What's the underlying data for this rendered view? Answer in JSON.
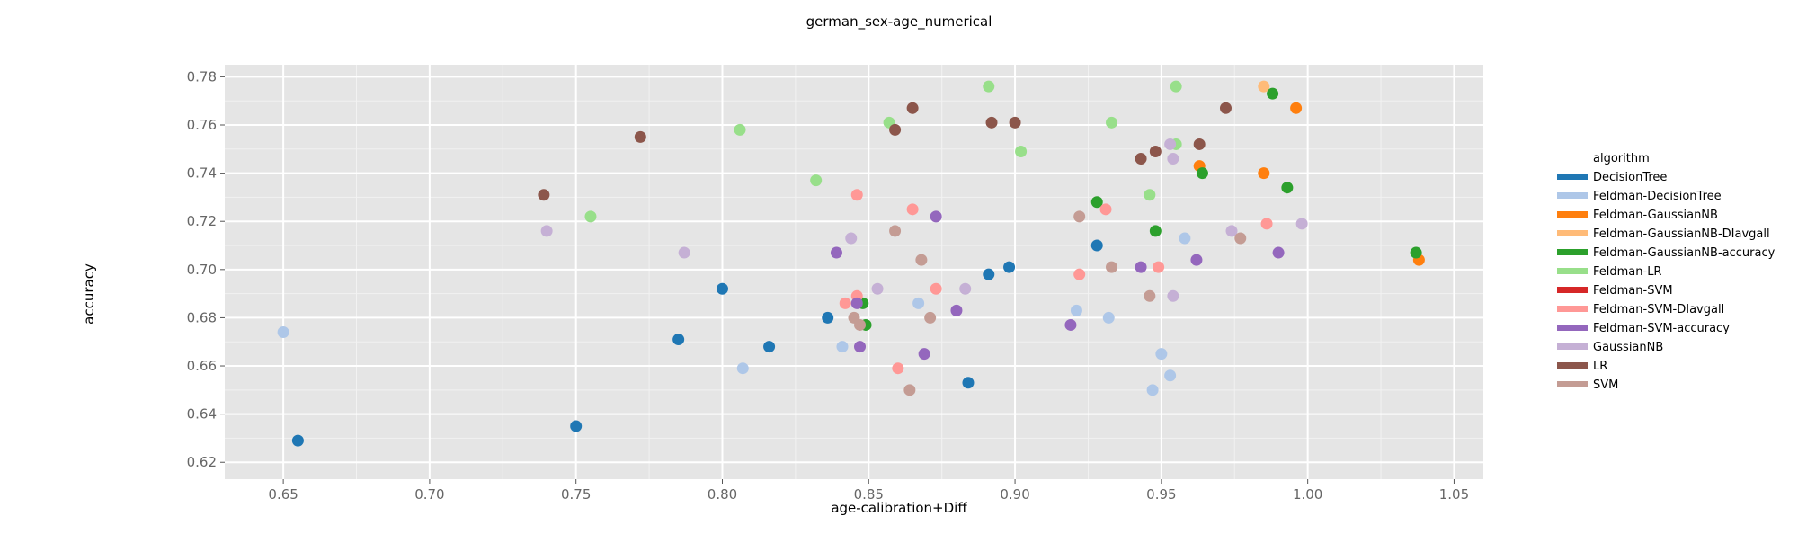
{
  "chart_data": {
    "type": "scatter",
    "title": "german_sex-age_numerical",
    "xlabel": "age-calibration+Diff",
    "ylabel": "accuracy",
    "xlim": [
      0.63,
      1.06
    ],
    "ylim": [
      0.613,
      0.785
    ],
    "x_ticks": [
      0.65,
      0.7,
      0.75,
      0.8,
      0.85,
      0.9,
      0.95,
      1.0,
      1.05
    ],
    "y_ticks": [
      0.62,
      0.64,
      0.66,
      0.68,
      0.7,
      0.72,
      0.74,
      0.76,
      0.78
    ],
    "grid": true,
    "legend": {
      "title": "algorithm",
      "position": "right"
    },
    "series": [
      {
        "name": "DecisionTree",
        "color": "#1f77b4",
        "points": [
          [
            0.655,
            0.629
          ],
          [
            0.75,
            0.635
          ],
          [
            0.785,
            0.671
          ],
          [
            0.8,
            0.692
          ],
          [
            0.816,
            0.668
          ],
          [
            0.836,
            0.68
          ],
          [
            0.884,
            0.653
          ],
          [
            0.891,
            0.698
          ],
          [
            0.898,
            0.701
          ],
          [
            0.928,
            0.71
          ]
        ]
      },
      {
        "name": "Feldman-DecisionTree",
        "color": "#aec7e8",
        "points": [
          [
            0.65,
            0.674
          ],
          [
            0.807,
            0.659
          ],
          [
            0.841,
            0.668
          ],
          [
            0.867,
            0.686
          ],
          [
            0.921,
            0.683
          ],
          [
            0.932,
            0.68
          ],
          [
            0.947,
            0.65
          ],
          [
            0.95,
            0.665
          ],
          [
            0.953,
            0.656
          ],
          [
            0.958,
            0.713
          ]
        ]
      },
      {
        "name": "Feldman-GaussianNB",
        "color": "#ff7f0e",
        "points": [
          [
            0.963,
            0.743
          ],
          [
            0.985,
            0.74
          ],
          [
            0.996,
            0.767
          ],
          [
            1.038,
            0.704
          ]
        ]
      },
      {
        "name": "Feldman-GaussianNB-DIavgall",
        "color": "#ffbb78",
        "points": [
          [
            0.985,
            0.776
          ]
        ]
      },
      {
        "name": "Feldman-GaussianNB-accuracy",
        "color": "#2ca02c",
        "points": [
          [
            0.848,
            0.686
          ],
          [
            0.849,
            0.677
          ],
          [
            0.928,
            0.728
          ],
          [
            0.948,
            0.716
          ],
          [
            0.964,
            0.74
          ],
          [
            0.988,
            0.773
          ],
          [
            0.993,
            0.734
          ],
          [
            1.037,
            0.707
          ]
        ]
      },
      {
        "name": "Feldman-LR",
        "color": "#98df8a",
        "points": [
          [
            0.755,
            0.722
          ],
          [
            0.806,
            0.758
          ],
          [
            0.832,
            0.737
          ],
          [
            0.857,
            0.761
          ],
          [
            0.891,
            0.776
          ],
          [
            0.902,
            0.749
          ],
          [
            0.933,
            0.761
          ],
          [
            0.946,
            0.731
          ],
          [
            0.955,
            0.776
          ],
          [
            0.955,
            0.752
          ]
        ]
      },
      {
        "name": "Feldman-SVM",
        "color": "#d62728",
        "points": []
      },
      {
        "name": "Feldman-SVM-DIavgall",
        "color": "#ff9896",
        "points": [
          [
            0.842,
            0.686
          ],
          [
            0.846,
            0.731
          ],
          [
            0.846,
            0.689
          ],
          [
            0.86,
            0.659
          ],
          [
            0.865,
            0.725
          ],
          [
            0.873,
            0.692
          ],
          [
            0.922,
            0.698
          ],
          [
            0.931,
            0.725
          ],
          [
            0.949,
            0.701
          ],
          [
            0.986,
            0.719
          ]
        ]
      },
      {
        "name": "Feldman-SVM-accuracy",
        "color": "#9467bd",
        "points": [
          [
            0.839,
            0.707
          ],
          [
            0.846,
            0.686
          ],
          [
            0.847,
            0.668
          ],
          [
            0.869,
            0.665
          ],
          [
            0.873,
            0.722
          ],
          [
            0.88,
            0.683
          ],
          [
            0.919,
            0.677
          ],
          [
            0.943,
            0.701
          ],
          [
            0.962,
            0.704
          ],
          [
            0.99,
            0.707
          ]
        ]
      },
      {
        "name": "GaussianNB",
        "color": "#c5b0d5",
        "points": [
          [
            0.74,
            0.716
          ],
          [
            0.787,
            0.707
          ],
          [
            0.844,
            0.713
          ],
          [
            0.853,
            0.692
          ],
          [
            0.883,
            0.692
          ],
          [
            0.953,
            0.752
          ],
          [
            0.954,
            0.746
          ],
          [
            0.954,
            0.689
          ],
          [
            0.974,
            0.716
          ],
          [
            0.998,
            0.719
          ]
        ]
      },
      {
        "name": "LR",
        "color": "#8c564b",
        "points": [
          [
            0.739,
            0.731
          ],
          [
            0.772,
            0.755
          ],
          [
            0.859,
            0.758
          ],
          [
            0.865,
            0.767
          ],
          [
            0.892,
            0.761
          ],
          [
            0.9,
            0.761
          ],
          [
            0.943,
            0.746
          ],
          [
            0.948,
            0.749
          ],
          [
            0.963,
            0.752
          ],
          [
            0.972,
            0.767
          ]
        ]
      },
      {
        "name": "SVM",
        "color": "#c49c94",
        "points": [
          [
            0.845,
            0.68
          ],
          [
            0.847,
            0.677
          ],
          [
            0.859,
            0.716
          ],
          [
            0.864,
            0.65
          ],
          [
            0.868,
            0.704
          ],
          [
            0.871,
            0.68
          ],
          [
            0.922,
            0.722
          ],
          [
            0.933,
            0.701
          ],
          [
            0.946,
            0.689
          ],
          [
            0.977,
            0.713
          ]
        ]
      }
    ]
  }
}
